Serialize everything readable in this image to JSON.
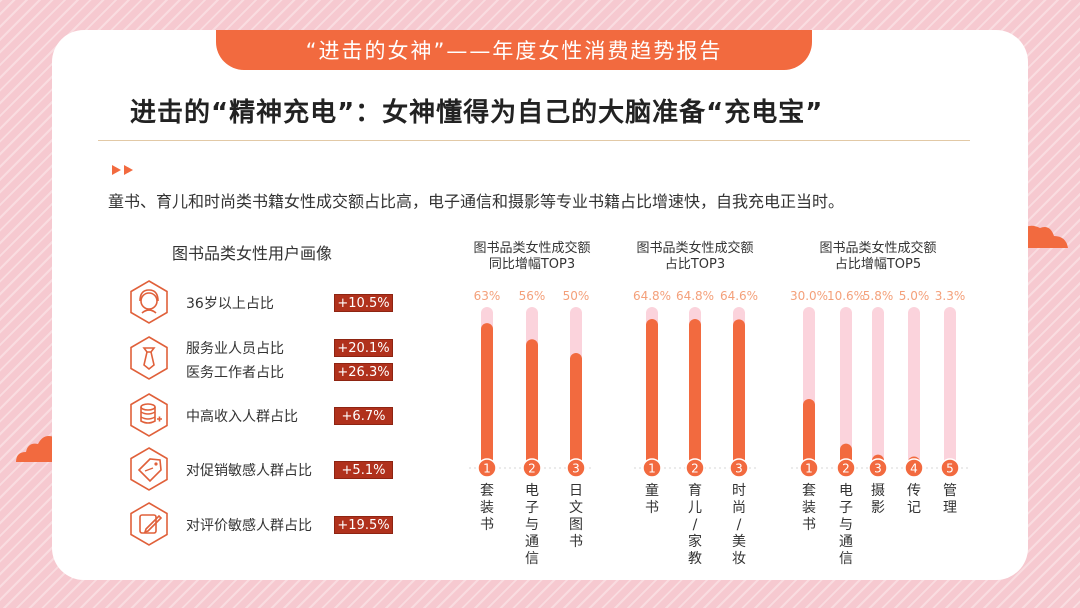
{
  "banner": {
    "title": "“进击的女神”——年度女性消费趋势报告"
  },
  "heading": {
    "title": "进击的“精神充电”：女神懂得为自己的大脑准备“充电宝”"
  },
  "subtitle": "童书、育儿和时尚类书籍女性成交额占比高，电子通信和摄影等专业书籍占比增速快，自我充电正当时。",
  "profile": {
    "title": "图书品类女性用户画像",
    "rows": [
      {
        "icon": "woman-face-icon",
        "items": [
          {
            "label": "36岁以上占比",
            "value": "+10.5%"
          }
        ]
      },
      {
        "icon": "necktie-icon",
        "items": [
          {
            "label": "服务业人员占比",
            "value": "+20.1%"
          },
          {
            "label": "医务工作者占比",
            "value": "+26.3%"
          }
        ]
      },
      {
        "icon": "coin-stack-icon",
        "items": [
          {
            "label": "中高收入人群占比",
            "value": "+6.7%"
          }
        ]
      },
      {
        "icon": "sale-tag-icon",
        "items": [
          {
            "label": "对促销敏感人群占比",
            "value": "+5.1%"
          }
        ]
      },
      {
        "icon": "edit-pencil-icon",
        "items": [
          {
            "label": "对评价敏感人群占比",
            "value": "+19.5%"
          }
        ]
      }
    ]
  },
  "colors": {
    "accent": "#f26a3f",
    "track": "#fbd3dc",
    "badge": "#b0311c",
    "label": "#f4a07a"
  },
  "chart_data": [
    {
      "type": "bar",
      "title": "图书品类女性成交额\n同比增幅TOP3",
      "categories": [
        "套装书",
        "电子与通信",
        "日文图书"
      ],
      "values": [
        63,
        56,
        50
      ],
      "labels": [
        "63%",
        "56%",
        "50%"
      ],
      "ylim": [
        0,
        70
      ],
      "ranks": [
        "1",
        "2",
        "3"
      ]
    },
    {
      "type": "bar",
      "title": "图书品类女性成交额\n占比TOP3",
      "categories": [
        "童书",
        "育儿/家教",
        "时尚/美妆"
      ],
      "values": [
        64.8,
        64.8,
        64.6
      ],
      "labels": [
        "64.8%",
        "64.8%",
        "64.6%"
      ],
      "ylim": [
        0,
        70
      ],
      "ranks": [
        "1",
        "2",
        "3"
      ]
    },
    {
      "type": "bar",
      "title": "图书品类女性成交额\n占比增幅TOP5",
      "categories": [
        "套装书",
        "电子与通信",
        "摄影",
        "传记",
        "管理"
      ],
      "values": [
        30.0,
        10.6,
        5.8,
        5.0,
        3.3
      ],
      "labels": [
        "30.0%",
        "10.6%",
        "5.8%",
        "5.0%",
        "3.3%"
      ],
      "ylim": [
        0,
        70
      ],
      "ranks": [
        "1",
        "2",
        "3",
        "4",
        "5"
      ]
    }
  ]
}
